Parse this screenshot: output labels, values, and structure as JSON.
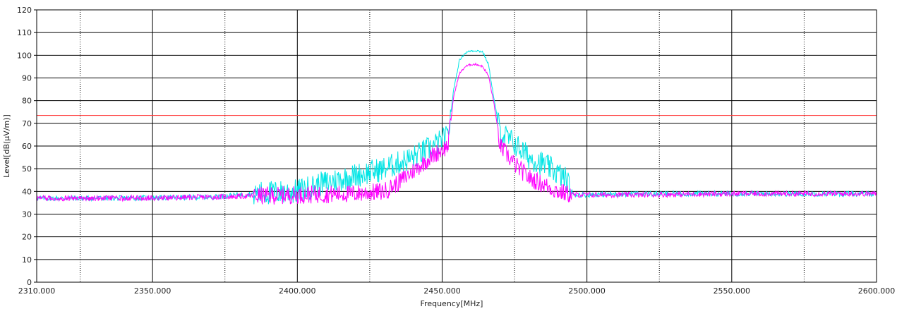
{
  "chart_data": {
    "type": "line",
    "xlabel": "Frequency[MHz]",
    "ylabel": "Level[dB(µV/m)]",
    "xlim": [
      2310,
      2600
    ],
    "ylim": [
      0,
      120
    ],
    "x_major_ticks": [
      2310,
      2350,
      2400,
      2450,
      2500,
      2550,
      2600
    ],
    "x_tick_labels": [
      "2310.000",
      "2350.000",
      "2400.000",
      "2450.000",
      "2500.000",
      "2550.000",
      "2600.000"
    ],
    "x_minor_gridlines": [
      2325,
      2375,
      2425,
      2475,
      2525,
      2575
    ],
    "y_ticks": [
      0,
      10,
      20,
      30,
      40,
      50,
      60,
      70,
      80,
      90,
      100,
      110,
      120
    ],
    "grid": true,
    "limit_line": {
      "value": 73.5,
      "color": "#ff3b3b"
    },
    "series": [
      {
        "color": "#00e5e5",
        "x": [
          2310,
          2340,
          2370,
          2385,
          2400,
          2410,
          2420,
          2430,
          2440,
          2447,
          2452,
          2454,
          2456,
          2458,
          2460,
          2462,
          2464,
          2466,
          2468,
          2470,
          2475,
          2480,
          2485,
          2490,
          2493,
          2495,
          2520,
          2550,
          2580,
          2600
        ],
        "values": [
          37,
          37,
          37.5,
          39,
          40,
          44,
          47,
          50,
          55,
          60,
          64,
          85,
          98,
          101,
          102,
          102,
          101.5,
          96,
          80,
          66,
          61,
          55,
          52,
          48,
          45,
          38.5,
          39,
          39,
          39,
          39
        ]
      },
      {
        "color": "#ff00ff",
        "x": [
          2310,
          2340,
          2370,
          2385,
          2400,
          2420,
          2430,
          2435,
          2440,
          2447,
          2452,
          2454,
          2456,
          2458,
          2460,
          2462,
          2464,
          2466,
          2468,
          2470,
          2475,
          2480,
          2485,
          2490,
          2493,
          2495,
          2520,
          2550,
          2580,
          2600
        ],
        "values": [
          37,
          37,
          37.5,
          38,
          38.5,
          39,
          40,
          44,
          49,
          56,
          60,
          82,
          92,
          95,
          96,
          96,
          95,
          91,
          78,
          60,
          52,
          46,
          43,
          40,
          39,
          38.5,
          38.5,
          39,
          39,
          39
        ]
      }
    ]
  }
}
